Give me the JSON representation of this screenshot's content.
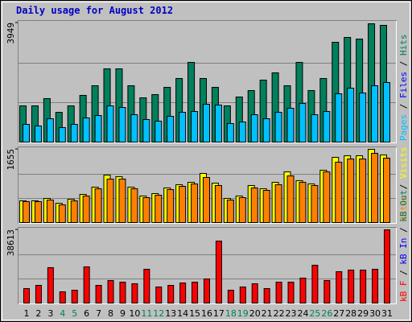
{
  "chart_data": [
    {
      "type": "bar",
      "title": "Daily usage for August 2012",
      "ylim": [
        0,
        3949
      ],
      "yticks": [
        3949
      ],
      "legend_separator": " / ",
      "legend": [
        {
          "label": "Pages",
          "color": "#00c0ff"
        },
        {
          "label": "Files",
          "color": "#0000ff"
        },
        {
          "label": "Hits",
          "color": "#00805c"
        }
      ],
      "series": [
        {
          "name": "Hits",
          "color": "#00805c",
          "values": [
            1219,
            1219,
            1458,
            1007,
            1219,
            1564,
            1882,
            2438,
            2438,
            1882,
            1484,
            1590,
            1829,
            2120,
            2650,
            2120,
            1829,
            1219,
            1511,
            1723,
            2067,
            2306,
            1882,
            2650,
            1723,
            2120,
            3313,
            3472,
            3419,
            3922,
            3870
          ]
        },
        {
          "name": "Pages",
          "color": "#00c0ff",
          "values": [
            610,
            557,
            795,
            504,
            610,
            822,
            901,
            1219,
            1166,
            928,
            769,
            716,
            875,
            1007,
            1034,
            1272,
            1246,
            636,
            689,
            928,
            795,
            1007,
            1140,
            1299,
            928,
            1034,
            1617,
            1802,
            1643,
            1882,
            1988
          ]
        }
      ]
    },
    {
      "type": "bar",
      "ylim": [
        0,
        1655
      ],
      "yticks": [
        1655
      ],
      "legend_separator": " / ",
      "legend": [
        {
          "label": "Sites",
          "color": "#ff8000"
        },
        {
          "label": "Visits",
          "color": "#ffff00"
        }
      ],
      "series": [
        {
          "name": "Visits",
          "color": "#ffff00",
          "values": [
            504,
            504,
            558,
            450,
            540,
            648,
            810,
            1080,
            1044,
            810,
            612,
            666,
            792,
            864,
            918,
            1116,
            900,
            558,
            612,
            846,
            774,
            918,
            1152,
            954,
            882,
            1188,
            1476,
            1512,
            1512,
            1655,
            1530
          ]
        },
        {
          "name": "Sites",
          "color": "#ff8000",
          "values": [
            486,
            486,
            522,
            414,
            504,
            612,
            774,
            990,
            990,
            774,
            576,
            630,
            756,
            828,
            882,
            1026,
            846,
            522,
            576,
            792,
            738,
            864,
            1062,
            918,
            846,
            1152,
            1368,
            1440,
            1440,
            1566,
            1458
          ]
        }
      ]
    },
    {
      "type": "bar",
      "ylim": [
        0,
        38613
      ],
      "yticks": [
        38613
      ],
      "legend_separator": " / ",
      "legend": [
        {
          "label": "kB F",
          "color": "#ff0000"
        },
        {
          "label": "kB In",
          "color": "#0000ff"
        },
        {
          "label": "kB Out",
          "color": "#00805c"
        }
      ],
      "categories": [
        "1",
        "2",
        "3",
        "4",
        "5",
        "6",
        "7",
        "8",
        "9",
        "10",
        "11",
        "12",
        "13",
        "14",
        "15",
        "16",
        "17",
        "18",
        "19",
        "20",
        "21",
        "22",
        "23",
        "24",
        "25",
        "26",
        "27",
        "28",
        "29",
        "30",
        "31"
      ],
      "category_colors": [
        "#000000",
        "#000000",
        "#000000",
        "#00805c",
        "#00805c",
        "#000000",
        "#000000",
        "#000000",
        "#000000",
        "#000000",
        "#00805c",
        "#00805c",
        "#000000",
        "#000000",
        "#000000",
        "#000000",
        "#000000",
        "#00805c",
        "#00805c",
        "#000000",
        "#000000",
        "#000000",
        "#000000",
        "#000000",
        "#00805c",
        "#00805c",
        "#000000",
        "#000000",
        "#000000",
        "#000000",
        "#000000"
      ],
      "series": [
        {
          "name": "kB F",
          "color": "#ff0000",
          "values": [
            7980,
            9660,
            18900,
            6300,
            7140,
            19320,
            9660,
            12180,
            11340,
            10500,
            18060,
            8820,
            9660,
            10920,
            11340,
            13020,
            32760,
            7140,
            8820,
            10500,
            7980,
            11340,
            11340,
            13440,
            20160,
            12180,
            16800,
            17640,
            17640,
            18060,
            38613
          ]
        }
      ]
    }
  ]
}
